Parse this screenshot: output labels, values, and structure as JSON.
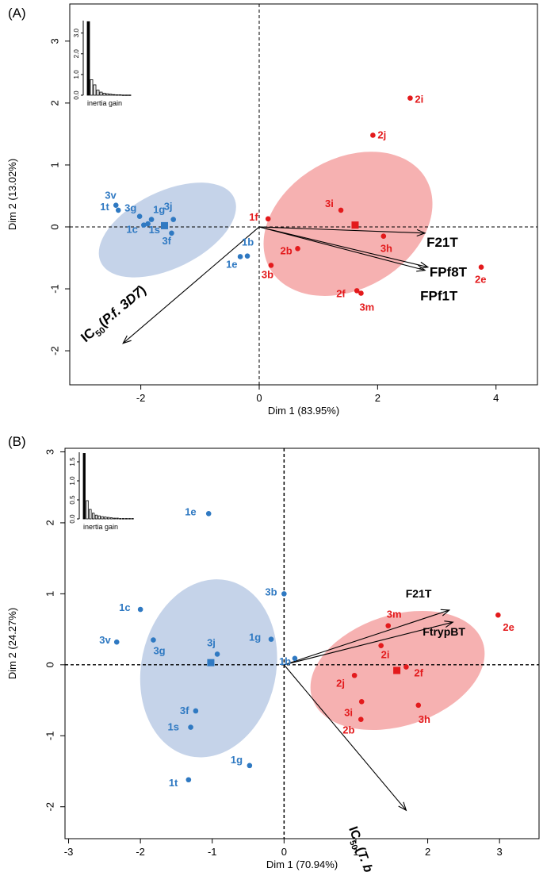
{
  "colors": {
    "group1": "#2f79c2",
    "group2": "#e31a1c",
    "ellipse1": "#b7c8e4",
    "ellipse2": "#f5a3a3"
  },
  "chart_data": [
    {
      "type": "scatter",
      "panel_label": "(A)",
      "xlabel": "Dim 1 (83.95%)",
      "ylabel": "Dim 2 (13.02%)",
      "xlim": [
        -3.2,
        4.7
      ],
      "ylim": [
        -2.55,
        3.6
      ],
      "xticks": [
        -2,
        0,
        2,
        4
      ],
      "yticks": [
        -2,
        -1,
        0,
        1,
        2,
        3
      ],
      "centroid_lines": true,
      "series": [
        {
          "color_key": "group1",
          "points": [
            {
              "label": "3v",
              "x": -2.42,
              "y": 0.35
            },
            {
              "label": "1t",
              "x": -2.38,
              "y": 0.27
            },
            {
              "label": "3g",
              "x": -2.02,
              "y": 0.17
            },
            {
              "label": "1g",
              "x": -1.82,
              "y": 0.12
            },
            {
              "label": "3j",
              "x": -1.45,
              "y": 0.12
            },
            {
              "label": "1c",
              "x": -1.95,
              "y": 0.03
            },
            {
              "label": "1s",
              "x": -1.88,
              "y": 0.05
            },
            {
              "label": "3f",
              "x": -1.48,
              "y": -0.1
            },
            {
              "label": "1b",
              "x": -0.2,
              "y": -0.47
            },
            {
              "label": "1e",
              "x": -0.32,
              "y": -0.48
            }
          ],
          "centroid": {
            "x": -1.6,
            "y": 0.02
          },
          "ellipse": {
            "cx": -1.55,
            "cy": -0.05,
            "rx": 1.25,
            "ry": 0.62,
            "angle_deg": 26
          }
        },
        {
          "color_key": "group2",
          "points": [
            {
              "label": "2i",
              "x": 2.55,
              "y": 2.08
            },
            {
              "label": "2j",
              "x": 1.92,
              "y": 1.48
            },
            {
              "label": "3i",
              "x": 1.38,
              "y": 0.27
            },
            {
              "label": "1f",
              "x": 0.15,
              "y": 0.13
            },
            {
              "label": "3h",
              "x": 2.1,
              "y": -0.15
            },
            {
              "label": "2b",
              "x": 0.65,
              "y": -0.35
            },
            {
              "label": "3b",
              "x": 0.2,
              "y": -0.62
            },
            {
              "label": "2f",
              "x": 1.65,
              "y": -1.03
            },
            {
              "label": "3m",
              "x": 1.72,
              "y": -1.07
            },
            {
              "label": "2e",
              "x": 3.75,
              "y": -0.65
            }
          ],
          "centroid": {
            "x": 1.62,
            "y": 0.03
          },
          "ellipse": {
            "cx": 1.5,
            "cy": 0.05,
            "rx": 1.52,
            "ry": 1.05,
            "angle_deg": 30
          }
        }
      ],
      "vectors": [
        {
          "label": "F21T",
          "x": 2.8,
          "y": -0.1
        },
        {
          "label": "FPf8T",
          "x": 2.85,
          "y": -0.65
        },
        {
          "label": "FPf1T",
          "x": 2.8,
          "y": -0.7
        },
        {
          "label": "IC",
          "sub": "50",
          "paren": "P.f. 3D7",
          "x": -2.3,
          "y": -1.88
        }
      ],
      "inset": {
        "label": "inertia gain",
        "yticks": [
          "0.0",
          "1.0",
          "2.0",
          "3.0"
        ],
        "bars": [
          3.55,
          0.75,
          0.5,
          0.25,
          0.15,
          0.1,
          0.07,
          0.05,
          0.03,
          0.02,
          0.02,
          0.01,
          0.01,
          0.01
        ],
        "ymax": 3.6
      }
    },
    {
      "type": "scatter",
      "panel_label": "(B)",
      "xlabel": "Dim 1 (70.94%)",
      "ylabel": "Dim 2 (24.27%)",
      "xlim": [
        -3.05,
        3.55
      ],
      "ylim": [
        -2.45,
        3.05
      ],
      "xticks": [
        -3,
        -2,
        -1,
        0,
        1,
        2,
        3
      ],
      "yticks": [
        -2,
        -1,
        0,
        1,
        2,
        3
      ],
      "centroid_lines": true,
      "series": [
        {
          "color_key": "group1",
          "points": [
            {
              "label": "1e",
              "x": -1.05,
              "y": 2.13
            },
            {
              "label": "3b",
              "x": 0.0,
              "y": 1.0
            },
            {
              "label": "1c",
              "x": -2.0,
              "y": 0.78
            },
            {
              "label": "3v",
              "x": -2.33,
              "y": 0.32
            },
            {
              "label": "3g",
              "x": -1.82,
              "y": 0.35
            },
            {
              "label": "1g",
              "x": -0.18,
              "y": 0.36
            },
            {
              "label": "3j",
              "x": -0.93,
              "y": 0.15
            },
            {
              "label": "1b",
              "x": 0.15,
              "y": 0.09
            },
            {
              "label": "3f",
              "x": -1.23,
              "y": -0.65
            },
            {
              "label": "1s",
              "x": -1.3,
              "y": -0.88
            },
            {
              "label": "1g",
              "x": -0.48,
              "y": -1.42
            },
            {
              "label": "1t",
              "x": -1.33,
              "y": -1.62
            }
          ],
          "centroid": {
            "x": -1.02,
            "y": 0.03
          },
          "ellipse": {
            "cx": -1.05,
            "cy": -0.05,
            "rx": 1.25,
            "ry": 0.95,
            "angle_deg": 78
          }
        },
        {
          "color_key": "group2",
          "points": [
            {
              "label": "2e",
              "x": 2.98,
              "y": 0.7
            },
            {
              "label": "3m",
              "x": 1.45,
              "y": 0.55
            },
            {
              "label": "2i",
              "x": 1.35,
              "y": 0.27
            },
            {
              "label": "2j",
              "x": 0.98,
              "y": -0.15
            },
            {
              "label": "2f",
              "x": 1.7,
              "y": -0.03
            },
            {
              "label": "3i",
              "x": 1.08,
              "y": -0.52
            },
            {
              "label": "2b",
              "x": 1.07,
              "y": -0.77
            },
            {
              "label": "3h",
              "x": 1.87,
              "y": -0.57
            }
          ],
          "centroid": {
            "x": 1.57,
            "y": -0.08
          },
          "ellipse": {
            "cx": 1.58,
            "cy": -0.08,
            "rx": 1.25,
            "ry": 0.78,
            "angle_deg": 18
          }
        }
      ],
      "vectors": [
        {
          "label": "F21T",
          "x": 2.3,
          "y": 0.77
        },
        {
          "label": "FtrypBT",
          "x": 2.35,
          "y": 0.6
        },
        {
          "label": "IC",
          "sub": "50",
          "paren": "T. b.b.",
          "x": 1.7,
          "y": -2.05
        }
      ],
      "inset": {
        "label": "inertia gain",
        "yticks": [
          "0.0",
          "0.5",
          "1.0",
          "1.5"
        ],
        "bars": [
          1.72,
          0.48,
          0.25,
          0.15,
          0.1,
          0.08,
          0.06,
          0.05,
          0.04,
          0.03,
          0.02,
          0.02,
          0.01,
          0.01,
          0.01,
          0.01,
          0.01
        ],
        "ymax": 1.75
      }
    }
  ]
}
